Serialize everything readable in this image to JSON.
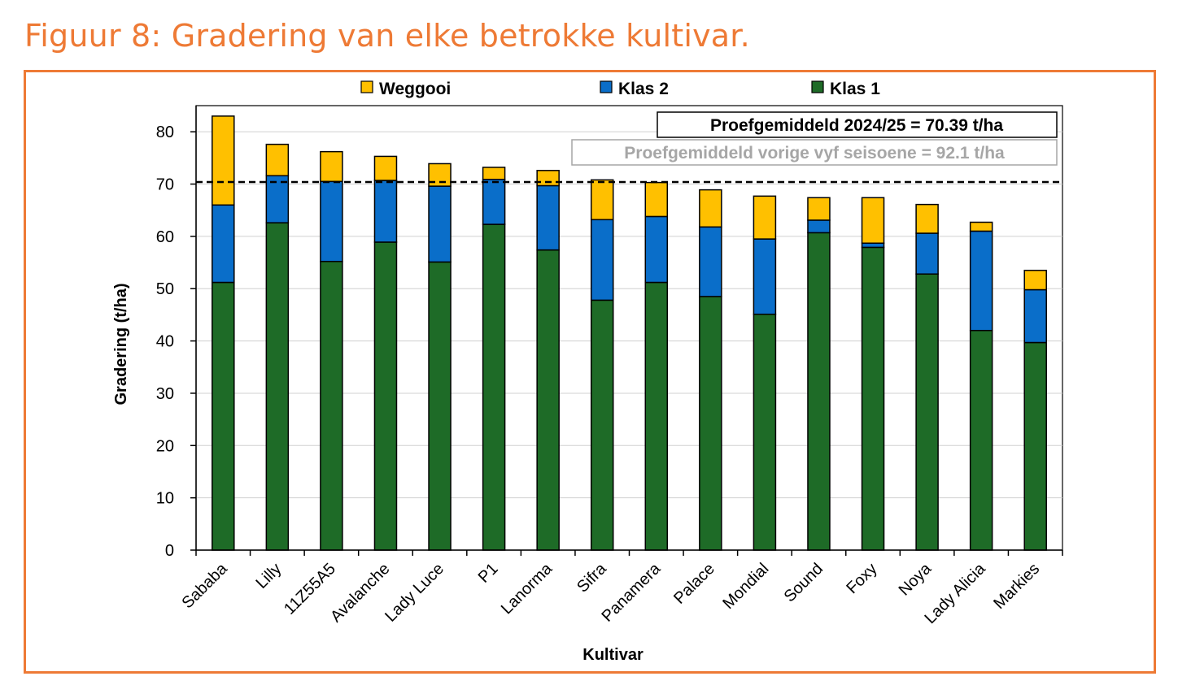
{
  "figure_title": "Figuur 8: Gradering van elke betrokke kultivar.",
  "colors": {
    "title": "#ee7a35",
    "frame": "#ee7a35",
    "klas1": "#1e6b27",
    "klas2": "#0a6ec9",
    "weggooi": "#ffc000",
    "grid": "#d0d0d0",
    "avg_prev_text": "#a6a6a6"
  },
  "chart_data": {
    "type": "bar",
    "stacked": true,
    "title": "",
    "xlabel": "Kultivar",
    "ylabel": "Gradering (t/ha)",
    "ylim": [
      0,
      85
    ],
    "yticks": [
      0,
      10,
      20,
      30,
      40,
      50,
      60,
      70,
      80
    ],
    "grid": true,
    "legend_position": "top",
    "categories": [
      "Sababa",
      "Lilly",
      "11Z55A5",
      "Avalanche",
      "Lady Luce",
      "P1",
      "Lanorma",
      "Sifra",
      "Panamera",
      "Palace",
      "Mondial",
      "Sound",
      "Foxy",
      "Noya",
      "Lady Alicia",
      "Markies"
    ],
    "series": [
      {
        "name": "Klas 1",
        "color_key": "klas1",
        "values": [
          51.2,
          62.6,
          55.2,
          58.9,
          55.1,
          62.3,
          57.4,
          47.8,
          51.2,
          48.5,
          45.1,
          60.7,
          57.9,
          52.8,
          42.0,
          39.7
        ]
      },
      {
        "name": "Klas 2",
        "color_key": "klas2",
        "values": [
          14.8,
          9.0,
          15.3,
          11.8,
          14.5,
          8.6,
          12.3,
          15.4,
          12.6,
          13.3,
          14.4,
          2.4,
          0.8,
          7.8,
          19.0,
          10.1
        ]
      },
      {
        "name": "Weggooi",
        "color_key": "weggooi",
        "values": [
          17.0,
          6.0,
          5.7,
          4.6,
          4.3,
          2.3,
          2.9,
          7.6,
          6.5,
          7.1,
          8.2,
          4.3,
          8.7,
          5.5,
          1.7,
          3.7
        ]
      }
    ],
    "legend_order": [
      "Weggooi",
      "Klas 2",
      "Klas 1"
    ],
    "reference_line": {
      "value": 70.39,
      "style": "dashed"
    },
    "annotations": [
      {
        "key": "avg_current",
        "text": "Proefgemiddeld 2024/25 = 70.39 t/ha"
      },
      {
        "key": "avg_previous",
        "text": "Proefgemiddeld vorige vyf seisoene = 92.1 t/ha"
      }
    ]
  }
}
